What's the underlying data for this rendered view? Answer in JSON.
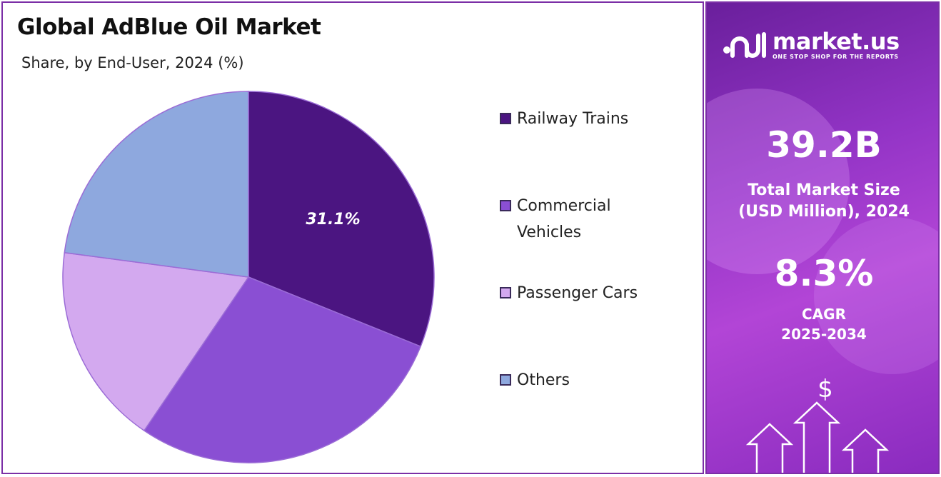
{
  "title": "Global AdBlue Oil Market",
  "subtitle": "Share, by End-User, 2024 (%)",
  "chart_data": {
    "type": "pie",
    "title": "Global AdBlue Oil Market",
    "subtitle": "Share, by End-User, 2024 (%)",
    "categories": [
      "Railway Trains",
      "Commercial Vehicles",
      "Passenger Cars",
      "Others"
    ],
    "values": [
      31.1,
      28.4,
      17.6,
      22.9
    ],
    "labeled": [
      "31.1%",
      null,
      null,
      null
    ],
    "colors": [
      "#4b1581",
      "#8a4fd3",
      "#d3a9ef",
      "#8ea8de"
    ],
    "start_angle_deg": 0,
    "direction": "clockwise",
    "legend_position": "right"
  },
  "legend": {
    "items": [
      {
        "label": "Railway Trains",
        "color": "#4b1581"
      },
      {
        "label": "Commercial Vehicles",
        "color": "#8a4fd3"
      },
      {
        "label": "Passenger Cars",
        "color": "#d3a9ef"
      },
      {
        "label": "Others",
        "color": "#8ea8de"
      }
    ]
  },
  "brand": {
    "name": "market.us",
    "tagline": "ONE STOP SHOP FOR THE REPORTS"
  },
  "stats": {
    "market_size_value": "39.2B",
    "market_size_label_1": "Total Market Size",
    "market_size_label_2": "(USD Million), 2024",
    "cagr_value": "8.3%",
    "cagr_label_1": "CAGR",
    "cagr_label_2": "2025-2034"
  },
  "decor": {
    "currency_symbol": "$"
  }
}
